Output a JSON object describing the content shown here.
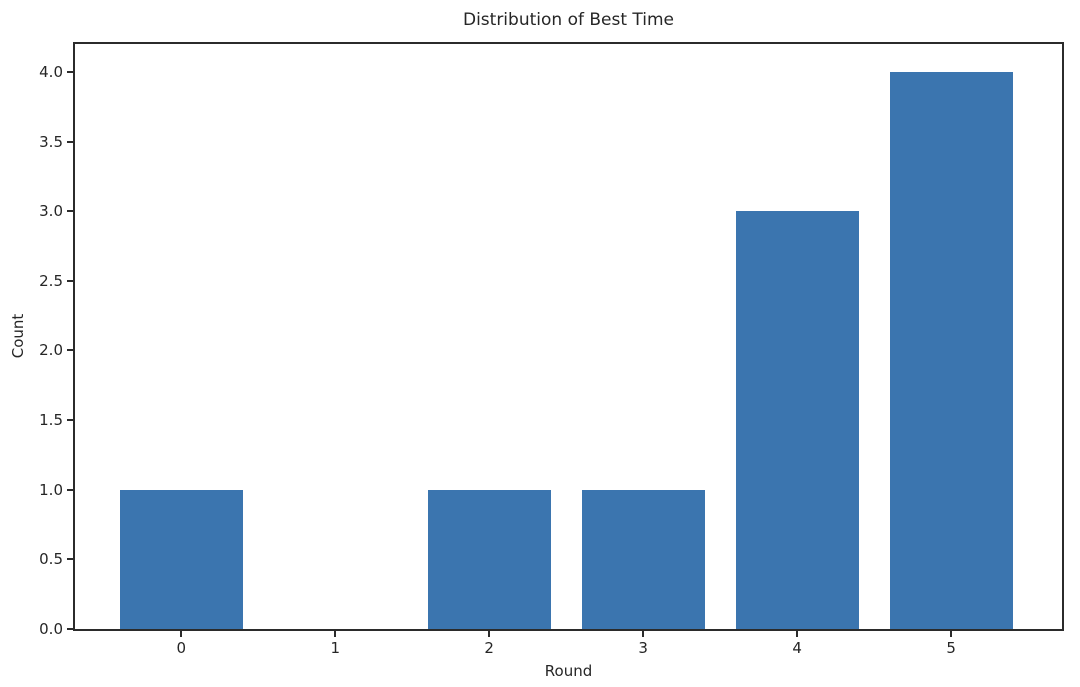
{
  "chart_data": {
    "type": "bar",
    "title": "Distribution of Best Time",
    "xlabel": "Round",
    "ylabel": "Count",
    "categories": [
      0,
      1,
      2,
      3,
      4,
      5
    ],
    "values": [
      1,
      0,
      1,
      1,
      3,
      4
    ],
    "xtick_labels": [
      "0",
      "1",
      "2",
      "3",
      "4",
      "5"
    ],
    "yticks": [
      0.0,
      0.5,
      1.0,
      1.5,
      2.0,
      2.5,
      3.0,
      3.5,
      4.0
    ],
    "ytick_labels": [
      "0.0",
      "0.5",
      "1.0",
      "1.5",
      "2.0",
      "2.5",
      "3.0",
      "3.5",
      "4.0"
    ],
    "xlim": [
      -0.69,
      5.72
    ],
    "ylim": [
      0,
      4.2
    ],
    "bar_width": 0.8,
    "bar_color": "#3b75af",
    "spine_color": "#2b2b2b",
    "text_color": "#262626",
    "grid": "off",
    "legend": "none"
  }
}
